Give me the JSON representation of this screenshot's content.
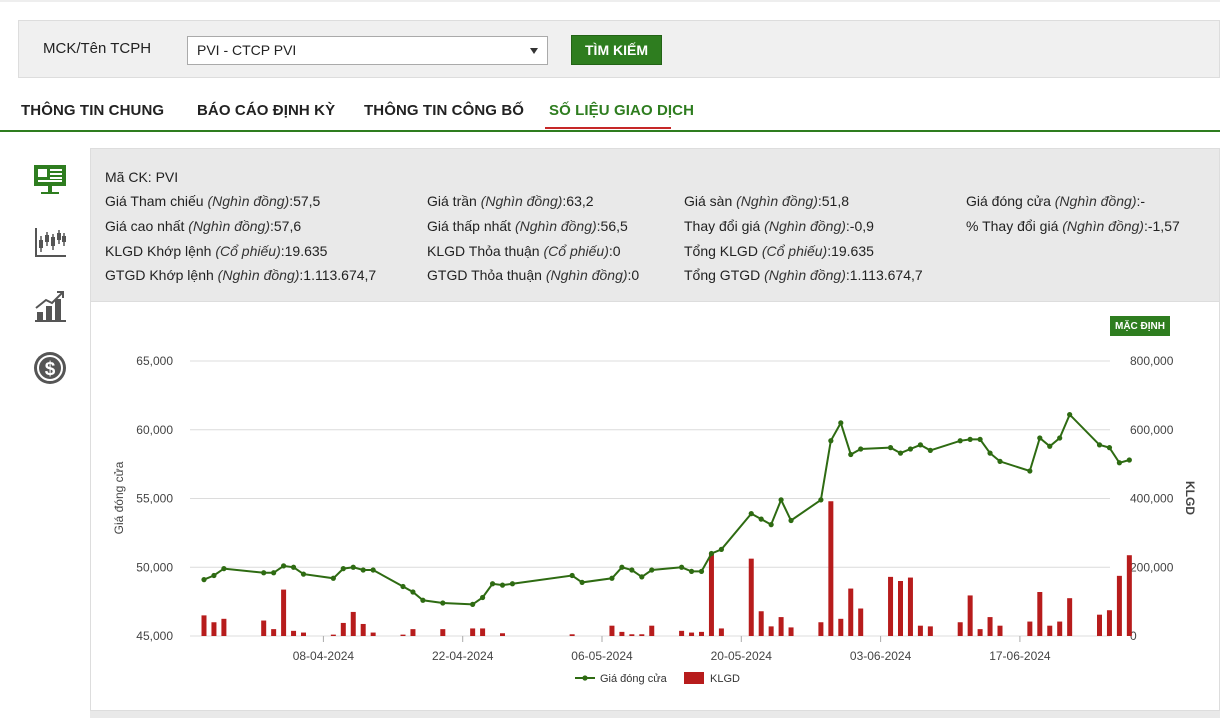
{
  "search": {
    "label": "MCK/Tên TCPH",
    "selected_company": "PVI - CTCP PVI",
    "button_label": "TÌM KIẾM"
  },
  "tabs": [
    {
      "label": "THÔNG TIN CHUNG"
    },
    {
      "label": "BÁO CÁO ĐỊNH KỲ"
    },
    {
      "label": "THÔNG TIN CÔNG BỐ"
    },
    {
      "label": "SỐ LIỆU GIAO DỊCH",
      "active": true
    }
  ],
  "side_icons": [
    "presentation-board-icon",
    "candlestick-chart-icon",
    "bar-growth-chart-icon",
    "dollar-coin-icon"
  ],
  "info": {
    "ticker": {
      "label": "Mã CK:",
      "value": "PVI"
    },
    "ref_price": {
      "label": "Giá Tham chiếu",
      "unit": "(Nghìn đồng)",
      "value": ":57,5"
    },
    "ceiling_price": {
      "label": "Giá trần",
      "unit": "(Nghìn đồng)",
      "value": ":63,2"
    },
    "floor_price": {
      "label": "Giá sàn",
      "unit": "(Nghìn đồng)",
      "value": ":51,8"
    },
    "close_price": {
      "label": "Giá đóng cửa",
      "unit": "(Nghìn đồng)",
      "value": ":-"
    },
    "high_price": {
      "label": "Giá cao nhất",
      "unit": "(Nghìn đồng)",
      "value": ":57,6"
    },
    "low_price": {
      "label": "Giá thấp nhất",
      "unit": "(Nghìn đồng)",
      "value": ":56,5"
    },
    "price_change": {
      "label": "Thay đổi giá",
      "unit": "(Nghìn đồng)",
      "value": ":-0,9"
    },
    "pct_change": {
      "label": "% Thay đổi giá",
      "unit": "(Nghìn đồng)",
      "value": ":-1,57"
    },
    "matched_volume": {
      "label": "KLGD Khớp lệnh",
      "unit": "(Cổ phiếu)",
      "value": ":19.635"
    },
    "negotiated_volume": {
      "label": "KLGD Thỏa thuận",
      "unit": "(Cổ phiếu)",
      "value": ":0"
    },
    "total_volume": {
      "label": "Tổng KLGD",
      "unit": "(Cổ phiếu)",
      "value": ":19.635"
    },
    "matched_value": {
      "label": "GTGD Khớp lệnh",
      "unit": "(Nghìn đồng)",
      "value": ":1.113.674,7"
    },
    "negotiated_value": {
      "label": "GTGD Thỏa thuận",
      "unit": "(Nghìn đồng)",
      "value": ":0"
    },
    "total_value": {
      "label": "Tổng GTGD",
      "unit": "(Nghìn đồng)",
      "value": ":1.113.674,7"
    }
  },
  "chart": {
    "default_button": "MẶC ĐỊNH"
  },
  "chart_data": {
    "type": "line",
    "ylabel": "Giá đóng cửa",
    "y2label": "KLGD",
    "ylim": [
      45000,
      65000
    ],
    "y2lim": [
      0,
      800000
    ],
    "y_ticks": [
      "65,000",
      "60,000",
      "55,000",
      "50,000",
      "45,000"
    ],
    "y2_ticks": [
      "800,000",
      "600,000",
      "400,000",
      "200,000",
      "0"
    ],
    "x_ticks": [
      {
        "label": "08-04-2024",
        "x": "2024-04-08"
      },
      {
        "label": "22-04-2024",
        "x": "2024-04-22"
      },
      {
        "label": "06-05-2024",
        "x": "2024-05-06"
      },
      {
        "label": "20-05-2024",
        "x": "2024-05-20"
      },
      {
        "label": "03-06-2024",
        "x": "2024-06-03"
      },
      {
        "label": "17-06-2024",
        "x": "2024-06-17"
      }
    ],
    "legend": {
      "placement": "bottom",
      "price": "Giá đóng cửa",
      "volume": "KLGD"
    },
    "colors": {
      "price": "#2e6b12",
      "volume": "#b71c1c"
    },
    "series": [
      {
        "name": "Giá đóng cửa",
        "points": [
          [
            "2024-03-27",
            49100
          ],
          [
            "2024-03-28",
            49400
          ],
          [
            "2024-03-29",
            49900
          ],
          [
            "2024-04-02",
            49600
          ],
          [
            "2024-04-03",
            49600
          ],
          [
            "2024-04-04",
            50100
          ],
          [
            "2024-04-05",
            50000
          ],
          [
            "2024-04-06",
            49500
          ],
          [
            "2024-04-09",
            49200
          ],
          [
            "2024-04-10",
            49900
          ],
          [
            "2024-04-11",
            50000
          ],
          [
            "2024-04-12",
            49800
          ],
          [
            "2024-04-13",
            49800
          ],
          [
            "2024-04-16",
            48600
          ],
          [
            "2024-04-17",
            48200
          ],
          [
            "2024-04-18",
            47600
          ],
          [
            "2024-04-20",
            47400
          ],
          [
            "2024-04-23",
            47300
          ],
          [
            "2024-04-24",
            47800
          ],
          [
            "2024-04-25",
            48800
          ],
          [
            "2024-04-26",
            48700
          ],
          [
            "2024-04-27",
            48800
          ],
          [
            "2024-05-03",
            49400
          ],
          [
            "2024-05-04",
            48900
          ],
          [
            "2024-05-07",
            49200
          ],
          [
            "2024-05-08",
            50000
          ],
          [
            "2024-05-09",
            49800
          ],
          [
            "2024-05-10",
            49300
          ],
          [
            "2024-05-11",
            49800
          ],
          [
            "2024-05-14",
            50000
          ],
          [
            "2024-05-15",
            49700
          ],
          [
            "2024-05-16",
            49700
          ],
          [
            "2024-05-17",
            51000
          ],
          [
            "2024-05-18",
            51300
          ],
          [
            "2024-05-21",
            53900
          ],
          [
            "2024-05-22",
            53500
          ],
          [
            "2024-05-23",
            53100
          ],
          [
            "2024-05-24",
            54900
          ],
          [
            "2024-05-25",
            53400
          ],
          [
            "2024-05-28",
            54900
          ],
          [
            "2024-05-29",
            59200
          ],
          [
            "2024-05-30",
            60500
          ],
          [
            "2024-05-31",
            58200
          ],
          [
            "2024-06-01",
            58600
          ],
          [
            "2024-06-04",
            58700
          ],
          [
            "2024-06-05",
            58300
          ],
          [
            "2024-06-06",
            58600
          ],
          [
            "2024-06-07",
            58900
          ],
          [
            "2024-06-08",
            58500
          ],
          [
            "2024-06-11",
            59200
          ],
          [
            "2024-06-12",
            59300
          ],
          [
            "2024-06-13",
            59300
          ],
          [
            "2024-06-14",
            58300
          ],
          [
            "2024-06-15",
            57700
          ],
          [
            "2024-06-18",
            57000
          ],
          [
            "2024-06-19",
            59400
          ],
          [
            "2024-06-20",
            58800
          ],
          [
            "2024-06-21",
            59400
          ],
          [
            "2024-06-22",
            61100
          ],
          [
            "2024-06-25",
            58900
          ],
          [
            "2024-06-26",
            58700
          ],
          [
            "2024-06-27",
            57600
          ],
          [
            "2024-06-28",
            57800
          ]
        ]
      },
      {
        "name": "KLGD",
        "points": [
          [
            "2024-03-27",
            60000
          ],
          [
            "2024-03-28",
            40000
          ],
          [
            "2024-03-29",
            50000
          ],
          [
            "2024-04-02",
            45000
          ],
          [
            "2024-04-03",
            20000
          ],
          [
            "2024-04-04",
            135000
          ],
          [
            "2024-04-05",
            15000
          ],
          [
            "2024-04-06",
            10000
          ],
          [
            "2024-04-09",
            4000
          ],
          [
            "2024-04-10",
            38000
          ],
          [
            "2024-04-11",
            70000
          ],
          [
            "2024-04-12",
            35000
          ],
          [
            "2024-04-13",
            10000
          ],
          [
            "2024-04-16",
            4000
          ],
          [
            "2024-04-17",
            20000
          ],
          [
            "2024-04-20",
            20000
          ],
          [
            "2024-04-23",
            22000
          ],
          [
            "2024-04-24",
            22000
          ],
          [
            "2024-04-26",
            8000
          ],
          [
            "2024-05-03",
            5000
          ],
          [
            "2024-05-07",
            30000
          ],
          [
            "2024-05-08",
            12000
          ],
          [
            "2024-05-09",
            5000
          ],
          [
            "2024-05-10",
            5000
          ],
          [
            "2024-05-11",
            30000
          ],
          [
            "2024-05-14",
            15000
          ],
          [
            "2024-05-15",
            10000
          ],
          [
            "2024-05-16",
            12000
          ],
          [
            "2024-05-17",
            240000
          ],
          [
            "2024-05-18",
            22000
          ],
          [
            "2024-05-21",
            225000
          ],
          [
            "2024-05-22",
            72000
          ],
          [
            "2024-05-23",
            28000
          ],
          [
            "2024-05-24",
            55000
          ],
          [
            "2024-05-25",
            25000
          ],
          [
            "2024-05-28",
            40000
          ],
          [
            "2024-05-29",
            392000
          ],
          [
            "2024-05-30",
            50000
          ],
          [
            "2024-05-31",
            138000
          ],
          [
            "2024-06-01",
            80000
          ],
          [
            "2024-06-04",
            172000
          ],
          [
            "2024-06-05",
            160000
          ],
          [
            "2024-06-06",
            170000
          ],
          [
            "2024-06-07",
            30000
          ],
          [
            "2024-06-08",
            28000
          ],
          [
            "2024-06-11",
            40000
          ],
          [
            "2024-06-12",
            118000
          ],
          [
            "2024-06-13",
            20000
          ],
          [
            "2024-06-14",
            55000
          ],
          [
            "2024-06-15",
            30000
          ],
          [
            "2024-06-18",
            42000
          ],
          [
            "2024-06-19",
            128000
          ],
          [
            "2024-06-20",
            30000
          ],
          [
            "2024-06-21",
            42000
          ],
          [
            "2024-06-22",
            110000
          ],
          [
            "2024-06-25",
            62000
          ],
          [
            "2024-06-26",
            75000
          ],
          [
            "2024-06-27",
            175000
          ],
          [
            "2024-06-28",
            235000
          ]
        ]
      }
    ]
  }
}
